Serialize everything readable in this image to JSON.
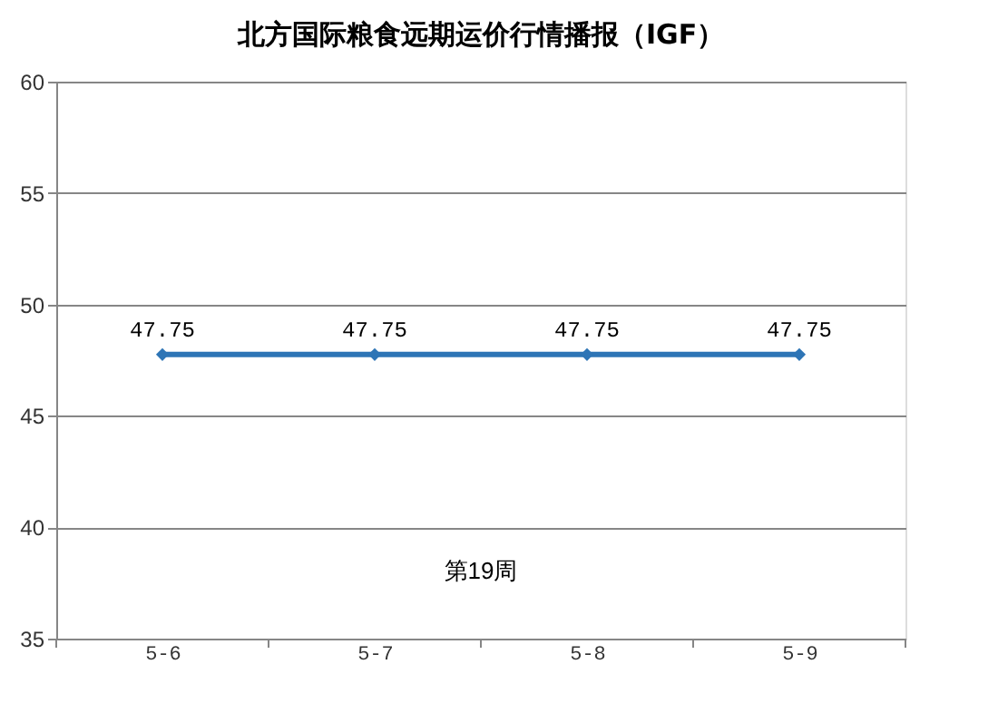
{
  "chart_data": {
    "type": "line",
    "title": "北方国际粮食远期运价行情播报（IGF）",
    "categories": [
      "5-6",
      "5-7",
      "5-8",
      "5-9"
    ],
    "series": [
      {
        "color": "#2e75b6",
        "values": [
          47.75,
          47.75,
          47.75,
          47.75
        ]
      }
    ],
    "ylim": [
      35,
      60
    ],
    "yticks": [
      35,
      40,
      45,
      50,
      55,
      60
    ],
    "grid": "y",
    "marker": "diamond",
    "line_style": "solid",
    "data_labels": true,
    "annotations": [
      "第19周"
    ]
  }
}
